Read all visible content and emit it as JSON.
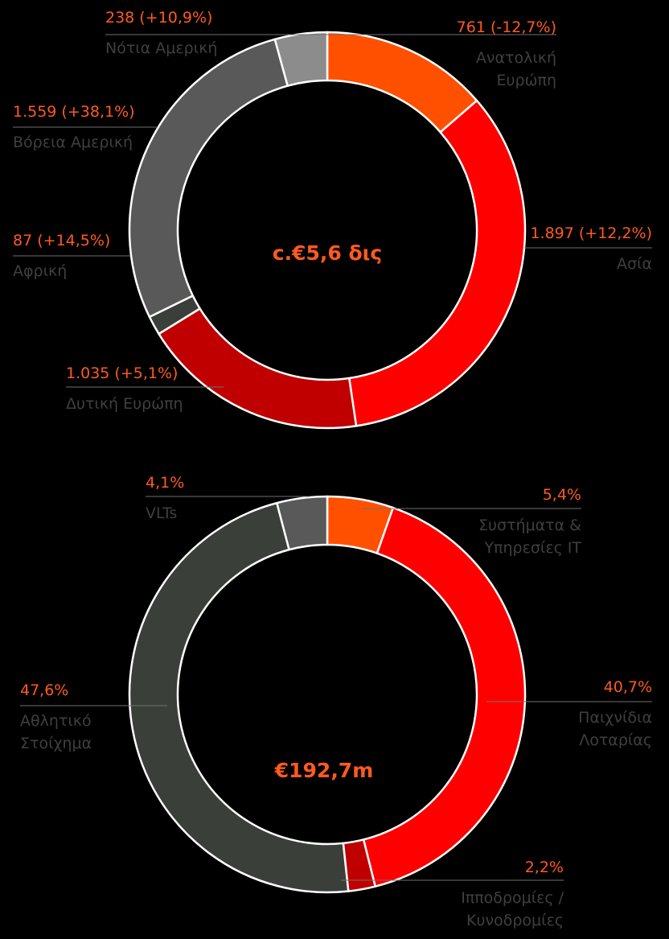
{
  "chart_data": [
    {
      "type": "pie",
      "donut": true,
      "center_label": "c.€5,6 δις",
      "slices": [
        {
          "value_label": "761 (-12,7%)",
          "name_lines": [
            "Ανατολική",
            "Ευρώπη"
          ],
          "value": 761,
          "color": "#FF5000"
        },
        {
          "value_label": "1.897 (+12,2%)",
          "name_lines": [
            "Ασία"
          ],
          "value": 1897,
          "color": "#FF0000"
        },
        {
          "value_label": "1.035 (+5,1%)",
          "name_lines": [
            "Δυτική Ευρώπη"
          ],
          "value": 1035,
          "color": "#C00000"
        },
        {
          "value_label": "87 (+14,5%)",
          "name_lines": [
            "Αφρική"
          ],
          "value": 87,
          "color": "#3A4039"
        },
        {
          "value_label": "1.559 (+38,1%)",
          "name_lines": [
            "Βόρεια Αμερική"
          ],
          "value": 1559,
          "color": "#595959"
        },
        {
          "value_label": "238 (+10,9%)",
          "name_lines": [
            "Νότια Αμερική"
          ],
          "value": 238,
          "color": "#8C8C8C"
        }
      ]
    },
    {
      "type": "pie",
      "donut": true,
      "center_label": "€192,7m",
      "slices": [
        {
          "value_label": "5,4%",
          "name_lines": [
            "Συστήματα &",
            "Υπηρεσίες IT"
          ],
          "value": 5.4,
          "color": "#FF5000"
        },
        {
          "value_label": "40,7%",
          "name_lines": [
            "Παιχνίδια",
            "Λοταρίας"
          ],
          "value": 40.7,
          "color": "#FF0000"
        },
        {
          "value_label": "2,2%",
          "name_lines": [
            "Ιπποδρομίες /",
            "Κυνοδρομίες"
          ],
          "value": 2.2,
          "color": "#C00000"
        },
        {
          "value_label": "47,6%",
          "name_lines": [
            "Αθλητικό",
            "Στοίχημα"
          ],
          "value": 47.6,
          "color": "#3A4039"
        },
        {
          "value_label": "4,1%",
          "name_lines": [
            "VLTs"
          ],
          "value": 4.1,
          "color": "#595959"
        }
      ]
    }
  ]
}
